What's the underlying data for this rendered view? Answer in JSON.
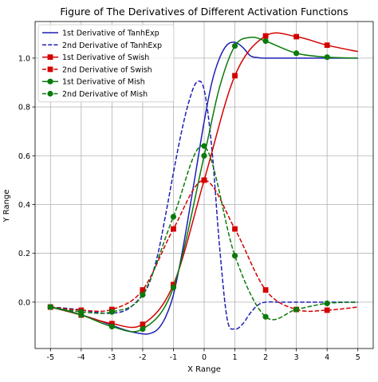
{
  "chart_data": {
    "type": "line",
    "title": "Figure of The Derivatives of Different Activation Functions",
    "xlabel": "X Range",
    "ylabel": "Y Range",
    "xlim": [
      -5.5,
      5.5
    ],
    "ylim": [
      -0.19,
      1.15
    ],
    "x_ticks": [
      -5,
      -4,
      -3,
      -2,
      -1,
      0,
      1,
      2,
      3,
      4,
      5
    ],
    "y_ticks": [
      0.0,
      0.2,
      0.4,
      0.6,
      0.8,
      1.0
    ],
    "grid": true,
    "legend_position": "top-left",
    "series": [
      {
        "name": "1st Derivative of TanhExp",
        "color": "#1f1fb4",
        "dash": "solid",
        "marker": "none",
        "points": [
          [
            -5,
            -0.02
          ],
          [
            -4.5,
            -0.033
          ],
          [
            -4,
            -0.052
          ],
          [
            -3.5,
            -0.072
          ],
          [
            -3,
            -0.095
          ],
          [
            -2.5,
            -0.117
          ],
          [
            -2,
            -0.13
          ],
          [
            -1.75,
            -0.128
          ],
          [
            -1.5,
            -0.11
          ],
          [
            -1.25,
            -0.06
          ],
          [
            -1,
            0.03
          ],
          [
            -0.75,
            0.18
          ],
          [
            -0.5,
            0.36
          ],
          [
            -0.25,
            0.55
          ],
          [
            0,
            0.74
          ],
          [
            0.25,
            0.9
          ],
          [
            0.5,
            1.0
          ],
          [
            0.75,
            1.055
          ],
          [
            1,
            1.065
          ],
          [
            1.25,
            1.045
          ],
          [
            1.5,
            1.01
          ],
          [
            1.75,
            1.002
          ],
          [
            2,
            1.0
          ],
          [
            3,
            1.0
          ],
          [
            4,
            1.0
          ],
          [
            5,
            1.0
          ]
        ]
      },
      {
        "name": "2nd Derivative of TanhExp",
        "color": "#1f1fb4",
        "dash": "dashed",
        "marker": "none",
        "points": [
          [
            -5,
            -0.02
          ],
          [
            -4.5,
            -0.025
          ],
          [
            -4,
            -0.032
          ],
          [
            -3.5,
            -0.042
          ],
          [
            -3,
            -0.045
          ],
          [
            -2.5,
            -0.03
          ],
          [
            -2,
            0.03
          ],
          [
            -1.75,
            0.09
          ],
          [
            -1.5,
            0.2
          ],
          [
            -1.25,
            0.36
          ],
          [
            -1,
            0.53
          ],
          [
            -0.75,
            0.69
          ],
          [
            -0.5,
            0.82
          ],
          [
            -0.25,
            0.9
          ],
          [
            0,
            0.87
          ],
          [
            0.25,
            0.63
          ],
          [
            0.5,
            0.23
          ],
          [
            0.75,
            -0.07
          ],
          [
            1,
            -0.11
          ],
          [
            1.25,
            -0.09
          ],
          [
            1.5,
            -0.045
          ],
          [
            1.75,
            -0.012
          ],
          [
            2,
            0.0
          ],
          [
            2.5,
            0.0
          ],
          [
            3,
            0.0
          ],
          [
            4,
            0.0
          ],
          [
            5,
            0.0
          ]
        ]
      },
      {
        "name": "1st Derivative of Swish",
        "color": "#d40000",
        "dash": "solid",
        "marker": "square",
        "points": [
          [
            -5,
            -0.02
          ],
          [
            -4,
            -0.053
          ],
          [
            -3,
            -0.088
          ],
          [
            -2,
            -0.091
          ],
          [
            -1,
            0.072
          ],
          [
            0,
            0.5
          ],
          [
            1,
            0.928
          ],
          [
            2,
            1.091
          ],
          [
            3,
            1.088
          ],
          [
            4,
            1.053
          ],
          [
            5,
            1.027
          ]
        ],
        "markers_at": [
          [
            -5,
            -0.02
          ],
          [
            -4,
            -0.053
          ],
          [
            -3,
            -0.088
          ],
          [
            -2,
            -0.091
          ],
          [
            -1,
            0.072
          ],
          [
            0,
            0.5
          ],
          [
            1,
            0.928
          ],
          [
            2,
            1.091
          ],
          [
            3,
            1.088
          ],
          [
            4,
            1.053
          ]
        ]
      },
      {
        "name": "2nd Derivative of Swish",
        "color": "#d40000",
        "dash": "dashed",
        "marker": "square",
        "points": [
          [
            -5,
            -0.02
          ],
          [
            -4,
            -0.033
          ],
          [
            -3,
            -0.03
          ],
          [
            -2,
            0.05
          ],
          [
            -1,
            0.3
          ],
          [
            0,
            0.5
          ],
          [
            1,
            0.3
          ],
          [
            2,
            0.05
          ],
          [
            3,
            -0.03
          ],
          [
            4,
            -0.033
          ],
          [
            5,
            -0.02
          ]
        ],
        "markers_at": [
          [
            -5,
            -0.02
          ],
          [
            -4,
            -0.033
          ],
          [
            -3,
            -0.03
          ],
          [
            -2,
            0.05
          ],
          [
            -1,
            0.3
          ],
          [
            0,
            0.5
          ],
          [
            1,
            0.3
          ],
          [
            2,
            0.05
          ],
          [
            3,
            -0.03
          ],
          [
            4,
            -0.033
          ]
        ]
      },
      {
        "name": "1st Derivative of Mish",
        "color": "#0a7a0a",
        "dash": "solid",
        "marker": "circle",
        "points": [
          [
            -5,
            -0.02
          ],
          [
            -4,
            -0.052
          ],
          [
            -3,
            -0.1
          ],
          [
            -2,
            -0.11
          ],
          [
            -1,
            0.06
          ],
          [
            0,
            0.6
          ],
          [
            0.5,
            0.88
          ],
          [
            1,
            1.05
          ],
          [
            1.5,
            1.085
          ],
          [
            2,
            1.07
          ],
          [
            3,
            1.02
          ],
          [
            4,
            1.004
          ],
          [
            5,
            1.0
          ]
        ],
        "markers_at": [
          [
            -5,
            -0.02
          ],
          [
            -4,
            -0.052
          ],
          [
            -3,
            -0.1
          ],
          [
            -2,
            -0.11
          ],
          [
            -1,
            0.06
          ],
          [
            0,
            0.6
          ],
          [
            1,
            1.05
          ],
          [
            2,
            1.07
          ],
          [
            3,
            1.02
          ],
          [
            4,
            1.004
          ]
        ]
      },
      {
        "name": "2nd Derivative of Mish",
        "color": "#0a7a0a",
        "dash": "dashed",
        "marker": "circle",
        "points": [
          [
            -5,
            -0.02
          ],
          [
            -4,
            -0.04
          ],
          [
            -3,
            -0.04
          ],
          [
            -2,
            0.03
          ],
          [
            -1,
            0.35
          ],
          [
            0,
            0.64
          ],
          [
            1,
            0.19
          ],
          [
            2,
            -0.06
          ],
          [
            3,
            -0.03
          ],
          [
            4,
            -0.005
          ],
          [
            5,
            0.0
          ]
        ],
        "markers_at": [
          [
            -5,
            -0.02
          ],
          [
            -4,
            -0.04
          ],
          [
            -3,
            -0.04
          ],
          [
            -2,
            0.03
          ],
          [
            -1,
            0.35
          ],
          [
            0,
            0.64
          ],
          [
            1,
            0.19
          ],
          [
            2,
            -0.06
          ],
          [
            3,
            -0.03
          ],
          [
            4,
            -0.005
          ]
        ]
      }
    ]
  }
}
